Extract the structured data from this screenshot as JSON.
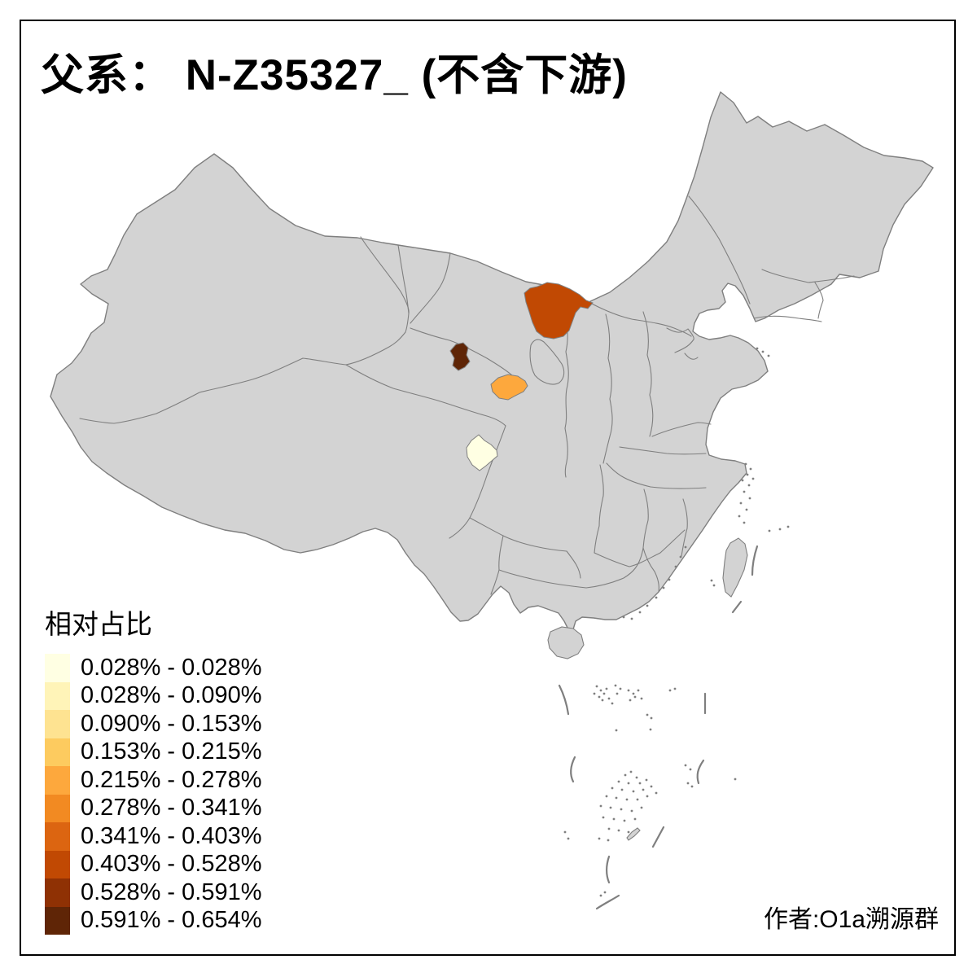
{
  "title": "父系： N-Z35327_ (不含下游)",
  "legend": {
    "title": "相对占比",
    "items": [
      {
        "label": "0.028% - 0.028%",
        "color": "#FFFFE3"
      },
      {
        "label": "0.028% - 0.090%",
        "color": "#FFF4B8"
      },
      {
        "label": "0.090% - 0.153%",
        "color": "#FEE391"
      },
      {
        "label": "0.153% - 0.215%",
        "color": "#FDCB5F"
      },
      {
        "label": "0.215% - 0.278%",
        "color": "#FDA83D"
      },
      {
        "label": "0.278% - 0.341%",
        "color": "#F28A22"
      },
      {
        "label": "0.341% - 0.403%",
        "color": "#DC6511"
      },
      {
        "label": "0.403% - 0.528%",
        "color": "#C14903"
      },
      {
        "label": "0.528% - 0.591%",
        "color": "#8F3104"
      },
      {
        "label": "0.591% - 0.654%",
        "color": "#5F2506"
      }
    ]
  },
  "attribution": "作者:O1a溯源群",
  "map": {
    "background_color": "#FFFFFF",
    "land_color": "#D3D3D3",
    "border_color": "#7F7F7F",
    "frame_color": "#000000",
    "highlighted_regions": [
      {
        "id": "region-1",
        "name": "inner-mongolia-west-patch",
        "color": "#C14903"
      },
      {
        "id": "region-2",
        "name": "qinghai-east-patch",
        "color": "#5F2506"
      },
      {
        "id": "region-3",
        "name": "gansu-central-patch",
        "color": "#FDA83D"
      },
      {
        "id": "region-4",
        "name": "sichuan-northwest-patch",
        "color": "#FFFFE3"
      }
    ]
  }
}
